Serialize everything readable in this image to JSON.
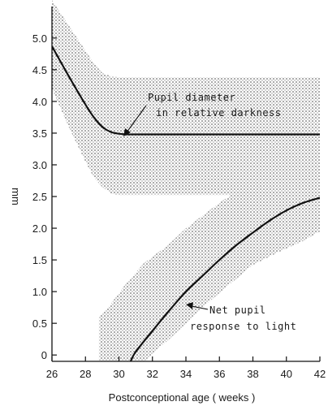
{
  "chart_data": {
    "type": "line",
    "title": "",
    "xlabel": "Postconceptional age  ( weeks )",
    "ylabel": "mm",
    "xlim": [
      26,
      42
    ],
    "ylim": [
      -0.1,
      5.6
    ],
    "x_ticks": [
      26,
      28,
      30,
      32,
      34,
      36,
      38,
      40,
      42
    ],
    "y_ticks": [
      0,
      0.5,
      1.0,
      1.5,
      2.0,
      2.5,
      3.0,
      3.5,
      4.0,
      4.5,
      5.0
    ],
    "y_tick_labels": [
      "0",
      "0.5",
      "1.0",
      "1.5",
      "2.0",
      "2.5",
      "3.0",
      "3.5",
      "4.0",
      "4.5",
      "5.0"
    ],
    "grid": false,
    "series": [
      {
        "x": [
          26,
          27,
          28,
          28.5,
          29,
          29.5,
          30,
          30.5,
          31,
          32,
          34,
          36,
          38,
          40,
          42
        ],
        "y": [
          4.87,
          4.4,
          3.95,
          3.75,
          3.6,
          3.52,
          3.49,
          3.48,
          3.48,
          3.48,
          3.48,
          3.48,
          3.48,
          3.48,
          3.48
        ],
        "band_upper": [
          5.6,
          5.2,
          4.8,
          4.6,
          4.45,
          4.4,
          4.38,
          4.38,
          4.38,
          4.38,
          4.38,
          4.38,
          4.38,
          4.38,
          4.38
        ],
        "band_lower": [
          4.2,
          3.6,
          3.05,
          2.8,
          2.65,
          2.55,
          2.52,
          2.52,
          2.52,
          2.52,
          2.52,
          2.52,
          2.52,
          2.52,
          2.52
        ]
      },
      {
        "x": [
          30.7,
          31,
          32,
          33,
          34,
          35,
          36,
          37,
          38,
          39,
          40,
          41,
          42
        ],
        "y": [
          -0.1,
          0.05,
          0.38,
          0.7,
          1.0,
          1.25,
          1.5,
          1.73,
          1.93,
          2.12,
          2.28,
          2.4,
          2.48
        ],
        "band_upper": [
          0.6,
          0.8,
          1.15,
          1.45,
          1.75,
          2.0,
          2.2,
          2.4,
          2.58,
          2.72,
          2.85,
          2.95,
          3.05
        ],
        "band_lower": [
          -0.1,
          -0.1,
          -0.1,
          -0.1,
          0.25,
          0.5,
          0.75,
          0.98,
          1.2,
          1.42,
          1.62,
          1.8,
          1.95
        ],
        "band_x": [
          28.8,
          29.5,
          30.5,
          31.5,
          33,
          34,
          35,
          36,
          37,
          38,
          39.5,
          41,
          42
        ]
      }
    ],
    "annotations": [
      {
        "lines": [
          "Pupil  diameter",
          "in  relative  darkness"
        ]
      },
      {
        "lines": [
          "Net  pupil",
          "response  to light"
        ]
      }
    ]
  }
}
